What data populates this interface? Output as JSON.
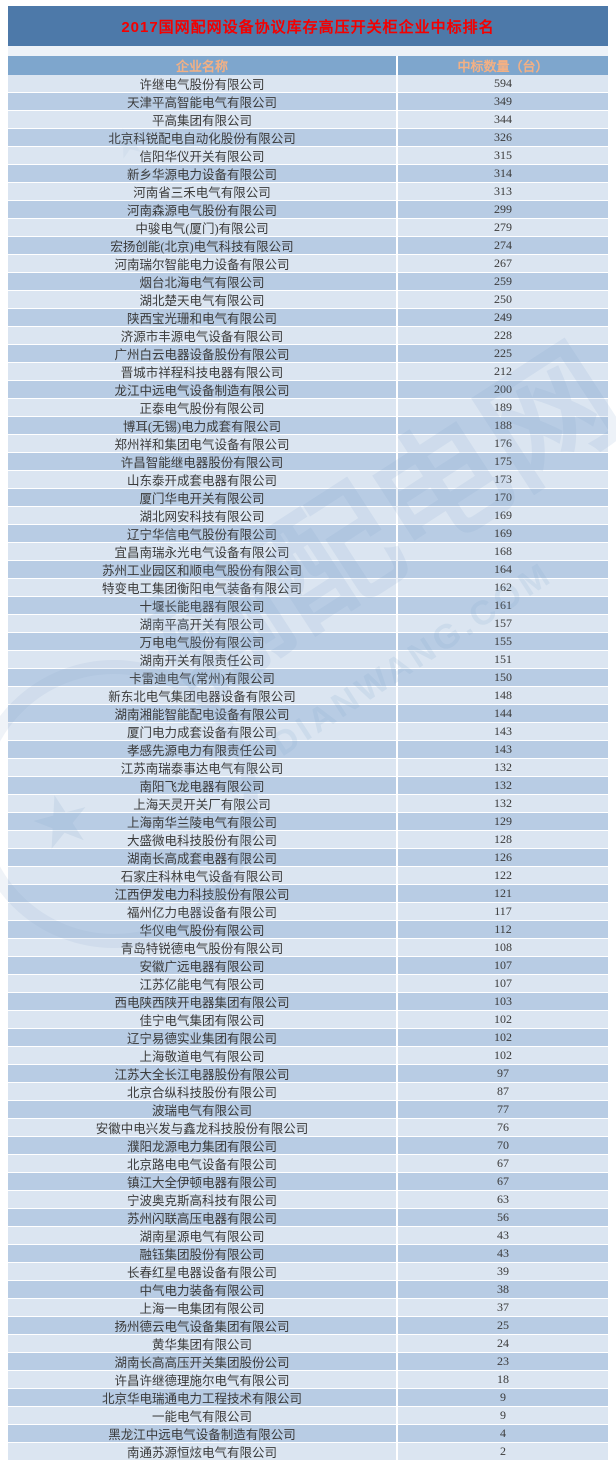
{
  "title": "2017国网配网设备协议库存高压开关柜企业中标排名",
  "table": {
    "columns": [
      "企业名称",
      "中标数量（台）"
    ],
    "rows": [
      {
        "company": "许继电气股份有限公司",
        "count": "594"
      },
      {
        "company": "天津平高智能电气有限公司",
        "count": "349"
      },
      {
        "company": "平高集团有限公司",
        "count": "344"
      },
      {
        "company": "北京科锐配电自动化股份有限公司",
        "count": "326"
      },
      {
        "company": "信阳华仪开关有限公司",
        "count": "315"
      },
      {
        "company": "新乡华源电力设备有限公司",
        "count": "314"
      },
      {
        "company": "河南省三禾电气有限公司",
        "count": "313"
      },
      {
        "company": "河南森源电气股份有限公司",
        "count": "299"
      },
      {
        "company": "中骏电气(厦门)有限公司",
        "count": "279"
      },
      {
        "company": "宏扬创能(北京)电气科技有限公司",
        "count": "274"
      },
      {
        "company": "河南瑞尔智能电力设备有限公司",
        "count": "267"
      },
      {
        "company": "烟台北海电气有限公司",
        "count": "259"
      },
      {
        "company": "湖北楚天电气有限公司",
        "count": "250"
      },
      {
        "company": "陕西宝光珊和电气有限公司",
        "count": "249"
      },
      {
        "company": "济源市丰源电气设备有限公司",
        "count": "228"
      },
      {
        "company": "广州白云电器设备股份有限公司",
        "count": "225"
      },
      {
        "company": "晋城市祥程科技电器有限公司",
        "count": "212"
      },
      {
        "company": "龙江中远电气设备制造有限公司",
        "count": "200"
      },
      {
        "company": "正泰电气股份有限公司",
        "count": "189"
      },
      {
        "company": "博耳(无锡)电力成套有限公司",
        "count": "188"
      },
      {
        "company": "郑州祥和集团电气设备有限公司",
        "count": "176"
      },
      {
        "company": "许昌智能继电器股份有限公司",
        "count": "175"
      },
      {
        "company": "山东泰开成套电器有限公司",
        "count": "173"
      },
      {
        "company": "厦门华电开关有限公司",
        "count": "170"
      },
      {
        "company": "湖北网安科技有限公司",
        "count": "169"
      },
      {
        "company": "辽宁华信电气股份有限公司",
        "count": "169"
      },
      {
        "company": "宜昌南瑞永光电气设备有限公司",
        "count": "168"
      },
      {
        "company": "苏州工业园区和顺电气股份有限公司",
        "count": "164"
      },
      {
        "company": "特变电工集团衡阳电气装备有限公司",
        "count": "162"
      },
      {
        "company": "十堰长能电器有限公司",
        "count": "161"
      },
      {
        "company": "湖南平高开关有限公司",
        "count": "157"
      },
      {
        "company": "万电电气股份有限公司",
        "count": "155"
      },
      {
        "company": "湖南开关有限责任公司",
        "count": "151"
      },
      {
        "company": "卡雷迪电气(常州)有限公司",
        "count": "150"
      },
      {
        "company": "新东北电气集团电器设备有限公司",
        "count": "148"
      },
      {
        "company": "湖南湘能智能配电设备有限公司",
        "count": "144"
      },
      {
        "company": "厦门电力成套设备有限公司",
        "count": "143"
      },
      {
        "company": "孝感先源电力有限责任公司",
        "count": "143"
      },
      {
        "company": "江苏南瑞泰事达电气有限公司",
        "count": "132"
      },
      {
        "company": "南阳飞龙电器有限公司",
        "count": "132"
      },
      {
        "company": "上海天灵开关厂有限公司",
        "count": "132"
      },
      {
        "company": "上海南华兰陵电气有限公司",
        "count": "129"
      },
      {
        "company": "大盛微电科技股份有限公司",
        "count": "128"
      },
      {
        "company": "湖南长高成套电器有限公司",
        "count": "126"
      },
      {
        "company": "石家庄科林电气设备有限公司",
        "count": "122"
      },
      {
        "company": "江西伊发电力科技股份有限公司",
        "count": "121"
      },
      {
        "company": "福州亿力电器设备有限公司",
        "count": "117"
      },
      {
        "company": "华仪电气股份有限公司",
        "count": "112"
      },
      {
        "company": "青岛特锐德电气股份有限公司",
        "count": "108"
      },
      {
        "company": "安徽广远电器有限公司",
        "count": "107"
      },
      {
        "company": "江苏亿能电气有限公司",
        "count": "107"
      },
      {
        "company": "西电陕西陕开电器集团有限公司",
        "count": "103"
      },
      {
        "company": "佳宁电气集团有限公司",
        "count": "102"
      },
      {
        "company": "辽宁易德实业集团有限公司",
        "count": "102"
      },
      {
        "company": "上海敬道电气有限公司",
        "count": "102"
      },
      {
        "company": "江苏大全长江电器股份有限公司",
        "count": "97"
      },
      {
        "company": "北京合纵科技股份有限公司",
        "count": "87"
      },
      {
        "company": "波瑞电气有限公司",
        "count": "77"
      },
      {
        "company": "安徽中电兴发与鑫龙科技股份有限公司",
        "count": "76"
      },
      {
        "company": "濮阳龙源电力集团有限公司",
        "count": "70"
      },
      {
        "company": "北京路电电气设备有限公司",
        "count": "67"
      },
      {
        "company": "镇江大全伊顿电器有限公司",
        "count": "67"
      },
      {
        "company": "宁波奥克斯高科技有限公司",
        "count": "63"
      },
      {
        "company": "苏州闪联高压电器有限公司",
        "count": "56"
      },
      {
        "company": "湖南星源电气有限公司",
        "count": "43"
      },
      {
        "company": "融钰集团股份有限公司",
        "count": "43"
      },
      {
        "company": "长春红星电器设备有限公司",
        "count": "39"
      },
      {
        "company": "中气电力装备有限公司",
        "count": "38"
      },
      {
        "company": "上海一电集团有限公司",
        "count": "37"
      },
      {
        "company": "扬州德云电气设备集团有限公司",
        "count": "25"
      },
      {
        "company": "黄华集团有限公司",
        "count": "24"
      },
      {
        "company": "湖南长高高压开关集团股份公司",
        "count": "23"
      },
      {
        "company": "许昌许继德理施尔电气有限公司",
        "count": "18"
      },
      {
        "company": "北京华电瑞通电力工程技术有限公司",
        "count": "9"
      },
      {
        "company": "一能电气有限公司",
        "count": "9"
      },
      {
        "company": "黑龙江中远电气设备制造有限公司",
        "count": "4"
      },
      {
        "company": "南通苏源恒炫电气有限公司",
        "count": "2"
      }
    ]
  },
  "watermark": {
    "text_cn": "输配电网",
    "text_en": "DIANWANG.COM"
  },
  "colors": {
    "title_bar_bg": "#4d79a9",
    "title_text": "#f40000",
    "header_bg": "#7ea6cd",
    "header_text": "#f3b084",
    "row_light": "#dbe5f1",
    "row_dark": "#b8cce4"
  }
}
